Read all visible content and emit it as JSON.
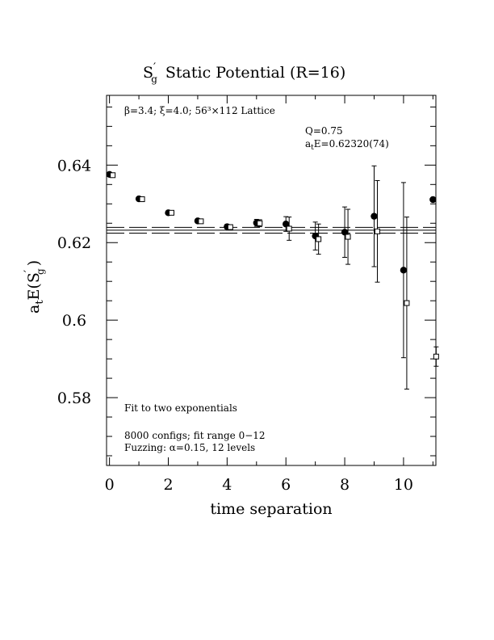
{
  "chart_data": {
    "type": "scatter",
    "title_main": "S",
    "title_sub": "g",
    "title_rest": "Static Potential (R=16)",
    "xlabel": "time separation",
    "ylabel_main": "a",
    "ylabel_sub": "t",
    "ylabel_rest": "E(S",
    "ylabel_sub2": "g",
    "ylabel_close": ")",
    "lattice_text": "β=3.4; ξ=4.0; 56³×112 Lattice",
    "q_text": "Q=0.75",
    "ate_prefix": "a",
    "ate_sub": "t",
    "ate_text": "E=0.62320(74)",
    "fit_text": "Fit to two exponentials",
    "configs_text": "8000 configs; fit range 0−12",
    "fuzz_text": "Fuzzing: α=0.15, 12 levels",
    "xlim": [
      -0.1,
      11.1
    ],
    "ylim": [
      0.5625,
      0.658
    ],
    "xticks": [
      0,
      2,
      4,
      6,
      8,
      10
    ],
    "xtick_labels": [
      "0",
      "2",
      "4",
      "6",
      "8",
      "10"
    ],
    "yticks": [
      0.58,
      0.6,
      0.62,
      0.64
    ],
    "ytick_labels": [
      "0.58",
      "0.6",
      "0.62",
      "0.64"
    ],
    "fit_value": 0.6232,
    "fit_error": 0.00074,
    "series": [
      {
        "marker": "filled-circle",
        "points": [
          {
            "x": 0,
            "y": 0.6376,
            "err": 0.0003
          },
          {
            "x": 1,
            "y": 0.6313,
            "err": 0.0004
          },
          {
            "x": 2,
            "y": 0.6277,
            "err": 0.0004
          },
          {
            "x": 3,
            "y": 0.6256,
            "err": 0.0005
          },
          {
            "x": 4,
            "y": 0.6241,
            "err": 0.0006
          },
          {
            "x": 5,
            "y": 0.6251,
            "err": 0.0009
          },
          {
            "x": 6,
            "y": 0.6248,
            "err": 0.0019
          },
          {
            "x": 7,
            "y": 0.6217,
            "err": 0.0036
          },
          {
            "x": 8,
            "y": 0.6227,
            "err": 0.0065
          },
          {
            "x": 9,
            "y": 0.6268,
            "err": 0.013
          },
          {
            "x": 10,
            "y": 0.6129,
            "err": 0.0226
          },
          {
            "x": 11,
            "y": 0.6311,
            "err": 0.0
          }
        ]
      },
      {
        "marker": "open-square",
        "points": [
          {
            "x": 0,
            "y": 0.6374,
            "err": 0.0003
          },
          {
            "x": 1,
            "y": 0.6312,
            "err": 0.0004
          },
          {
            "x": 2,
            "y": 0.6277,
            "err": 0.0004
          },
          {
            "x": 3,
            "y": 0.6255,
            "err": 0.0005
          },
          {
            "x": 4,
            "y": 0.624,
            "err": 0.0006
          },
          {
            "x": 5,
            "y": 0.625,
            "err": 0.0009
          },
          {
            "x": 6,
            "y": 0.6236,
            "err": 0.003
          },
          {
            "x": 7,
            "y": 0.6209,
            "err": 0.0039
          },
          {
            "x": 8,
            "y": 0.6215,
            "err": 0.0071
          },
          {
            "x": 9,
            "y": 0.6229,
            "err": 0.0131
          },
          {
            "x": 10,
            "y": 0.6044,
            "err": 0.0222
          },
          {
            "x": 11,
            "y": 0.5906,
            "err": 0.0025
          }
        ]
      }
    ]
  }
}
